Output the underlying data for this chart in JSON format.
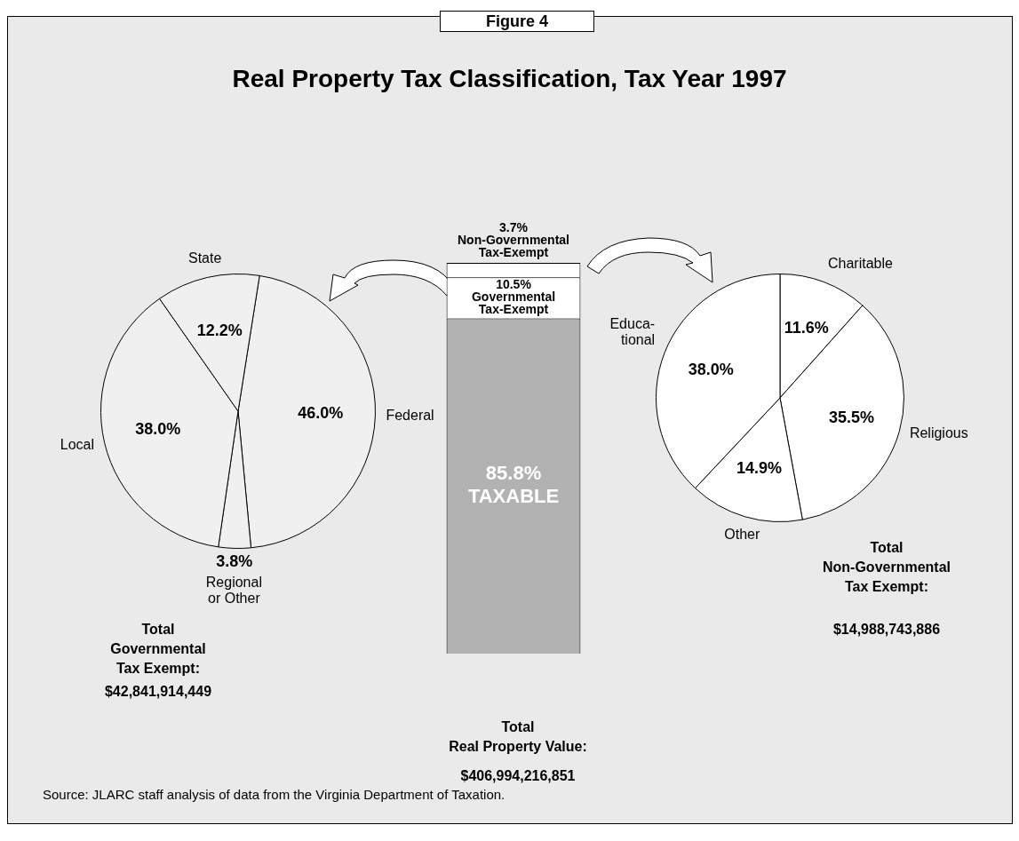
{
  "chart_data": [
    {
      "type": "pie",
      "categories": [
        "Federal",
        "Regional\nor Other",
        "Local",
        "State"
      ],
      "values": [
        46.0,
        3.8,
        38.0,
        12.2
      ],
      "colors": [
        "#f0f0f0",
        "#f0f0f0",
        "#f0f0f0",
        "#f0f0f0"
      ],
      "value_labels": [
        "46.0%",
        "3.8%",
        "38.0%",
        "12.2%"
      ],
      "annotations": [
        "Total\nGovernmental\nTax Exempt:",
        "$42,841,914,449"
      ]
    },
    {
      "type": "bar",
      "title": "Real Property Tax Classification, Tax Year 1997",
      "categories": [
        null
      ],
      "stacked": true,
      "series": [
        {
          "name": "TAXABLE",
          "color": "#b2b2b2",
          "values": [
            85.8
          ],
          "value_labels": [
            "85.8%"
          ]
        },
        {
          "name": "Governmental\nTax-Exempt",
          "color": "#ffffff",
          "values": [
            10.5
          ],
          "value_labels": [
            "10.5%"
          ]
        },
        {
          "name": "Non-Governmental\nTax-Exempt",
          "color": "#ffffff",
          "values": [
            3.7
          ],
          "value_labels": [
            "3.7%"
          ]
        }
      ],
      "annotations": [
        "Figure 4",
        "Total\nReal Property Value:",
        "$406,994,216,851",
        "Source:  JLARC staff analysis of data from the Virginia Department of Taxation."
      ]
    },
    {
      "type": "pie",
      "categories": [
        "Charitable",
        "Religious",
        "Other",
        "Educa-\ntional"
      ],
      "values": [
        11.6,
        35.5,
        14.9,
        38.0
      ],
      "colors": [
        "#ffffff",
        "#ffffff",
        "#ffffff",
        "#ffffff"
      ],
      "value_labels": [
        "11.6%",
        "35.5%",
        "14.9%",
        "38.0%"
      ],
      "annotations": [
        "Total\nNon-Governmental\nTax Exempt:",
        "$14,988,743,886"
      ]
    }
  ]
}
